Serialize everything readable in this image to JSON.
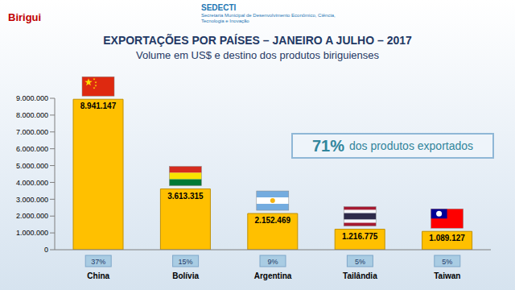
{
  "chart_data": {
    "type": "bar",
    "title": "EXPORTAÇÕES POR PAÍSES – JANEIRO A JULHO – 2017",
    "subtitle": "Volume em US$ e destino dos produtos biriguienses",
    "categories": [
      "China",
      "Bolívia",
      "Argentina",
      "Tailândia",
      "Taiwan"
    ],
    "values": [
      8941147,
      3613315,
      2152469,
      1216775,
      1089127
    ],
    "value_labels": [
      "8.941.147",
      "3.613.315",
      "2.152.469",
      "1.216.775",
      "1.089.127"
    ],
    "data_labels": true,
    "share_labels": [
      "37%",
      "15%",
      "9%",
      "5%",
      "5%"
    ],
    "annotation": "71% dos produtos exportados",
    "header_texts": [
      "Birigui",
      "SEDECTI",
      "Secretaria Municipal de Desenvolvimento Econômico, Ciência, Tecnologia e Inovação"
    ],
    "color": "#ffc000",
    "ylim": [
      0,
      9000000
    ],
    "yticks": [
      0,
      {
        "value": 1000000,
        "label": "1.000.000"
      },
      {
        "value": 2000000,
        "label": "2.000.000"
      },
      {
        "value": 3000000,
        "label": "3.000.000"
      },
      {
        "value": 4000000,
        "label": "4.000.000"
      },
      {
        "value": 5000000,
        "label": "5.000.000"
      },
      {
        "value": 6000000,
        "label": "6.000.000"
      },
      {
        "value": 7000000,
        "label": "7.000.000"
      },
      {
        "value": 8000000,
        "label": "8.000.000"
      },
      {
        "value": 9000000,
        "label": "9.000.000"
      }
    ],
    "grid": false
  }
}
